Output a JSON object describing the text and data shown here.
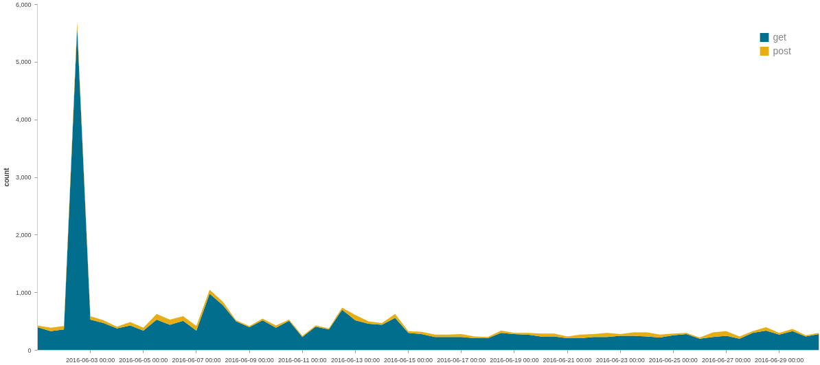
{
  "chart_data": {
    "type": "area",
    "stacked": true,
    "ylabel": "count",
    "legend": "top right",
    "grid": false,
    "x": [
      "2016-06-01T00:00",
      "2016-06-01T12:00",
      "2016-06-02T00:00",
      "2016-06-02T12:00",
      "2016-06-03T00:00",
      "2016-06-03T12:00",
      "2016-06-04T00:00",
      "2016-06-04T12:00",
      "2016-06-05T00:00",
      "2016-06-05T12:00",
      "2016-06-06T00:00",
      "2016-06-06T12:00",
      "2016-06-07T00:00",
      "2016-06-07T12:00",
      "2016-06-08T00:00",
      "2016-06-08T12:00",
      "2016-06-09T00:00",
      "2016-06-09T12:00",
      "2016-06-10T00:00",
      "2016-06-10T12:00",
      "2016-06-11T00:00",
      "2016-06-11T12:00",
      "2016-06-12T00:00",
      "2016-06-12T12:00",
      "2016-06-13T00:00",
      "2016-06-13T12:00",
      "2016-06-14T00:00",
      "2016-06-14T12:00",
      "2016-06-15T00:00",
      "2016-06-15T12:00",
      "2016-06-16T00:00",
      "2016-06-16T12:00",
      "2016-06-17T00:00",
      "2016-06-17T12:00",
      "2016-06-18T00:00",
      "2016-06-18T12:00",
      "2016-06-19T00:00",
      "2016-06-19T12:00",
      "2016-06-20T00:00",
      "2016-06-20T12:00",
      "2016-06-21T00:00",
      "2016-06-21T12:00",
      "2016-06-22T00:00",
      "2016-06-22T12:00",
      "2016-06-23T00:00",
      "2016-06-23T12:00",
      "2016-06-24T00:00",
      "2016-06-24T12:00",
      "2016-06-25T00:00",
      "2016-06-25T12:00",
      "2016-06-26T00:00",
      "2016-06-26T12:00",
      "2016-06-27T00:00",
      "2016-06-27T12:00",
      "2016-06-28T00:00",
      "2016-06-28T12:00",
      "2016-06-29T00:00",
      "2016-06-29T12:00",
      "2016-06-30T00:00",
      "2016-06-30T12:00"
    ],
    "series": [
      {
        "name": "get",
        "color": "#006e8c",
        "values": [
          400,
          330,
          360,
          5600,
          530,
          470,
          380,
          430,
          340,
          530,
          440,
          510,
          340,
          980,
          780,
          500,
          400,
          520,
          390,
          510,
          230,
          410,
          360,
          700,
          520,
          460,
          440,
          560,
          300,
          280,
          230,
          230,
          230,
          210,
          210,
          300,
          280,
          270,
          240,
          240,
          210,
          210,
          230,
          230,
          250,
          250,
          240,
          220,
          260,
          280,
          200,
          230,
          250,
          200,
          300,
          340,
          270,
          330,
          240,
          280
        ]
      },
      {
        "name": "post",
        "color": "#e6ae14",
        "values": [
          30,
          60,
          60,
          100,
          60,
          50,
          30,
          60,
          50,
          100,
          90,
          80,
          80,
          70,
          60,
          20,
          20,
          30,
          40,
          20,
          20,
          20,
          20,
          40,
          90,
          40,
          30,
          70,
          30,
          40,
          40,
          40,
          50,
          30,
          20,
          40,
          20,
          30,
          50,
          50,
          30,
          60,
          50,
          70,
          30,
          60,
          70,
          50,
          30,
          20,
          20,
          80,
          80,
          40,
          30,
          60,
          30,
          40,
          20,
          20
        ]
      }
    ],
    "xlim": [
      "2016-06-01T00:00",
      "2016-06-30T12:00"
    ],
    "xticks": [
      {
        "value": "2016-06-03T00:00",
        "label": "2016-06-03 00:00"
      },
      {
        "value": "2016-06-05T00:00",
        "label": "2016-06-05 00:00"
      },
      {
        "value": "2016-06-07T00:00",
        "label": "2016-06-07 00:00"
      },
      {
        "value": "2016-06-09T00:00",
        "label": "2016-06-09 00:00"
      },
      {
        "value": "2016-06-11T00:00",
        "label": "2016-06-11 00:00"
      },
      {
        "value": "2016-06-13T00:00",
        "label": "2016-06-13 00:00"
      },
      {
        "value": "2016-06-15T00:00",
        "label": "2016-06-15 00:00"
      },
      {
        "value": "2016-06-17T00:00",
        "label": "2016-06-17 00:00"
      },
      {
        "value": "2016-06-19T00:00",
        "label": "2016-06-19 00:00"
      },
      {
        "value": "2016-06-21T00:00",
        "label": "2016-06-21 00:00"
      },
      {
        "value": "2016-06-23T00:00",
        "label": "2016-06-23 00:00"
      },
      {
        "value": "2016-06-25T00:00",
        "label": "2016-06-25 00:00"
      },
      {
        "value": "2016-06-27T00:00",
        "label": "2016-06-27 00:00"
      },
      {
        "value": "2016-06-29T00:00",
        "label": "2016-06-29 00:00"
      }
    ],
    "ylim": [
      0,
      6000
    ],
    "yticks": [
      {
        "value": 0,
        "label": "0"
      },
      {
        "value": 1000,
        "label": "1,000"
      },
      {
        "value": 2000,
        "label": "2,000"
      },
      {
        "value": 3000,
        "label": "3,000"
      },
      {
        "value": 4000,
        "label": "4,000"
      },
      {
        "value": 5000,
        "label": "5,000"
      },
      {
        "value": 6000,
        "label": "6,000"
      }
    ]
  }
}
